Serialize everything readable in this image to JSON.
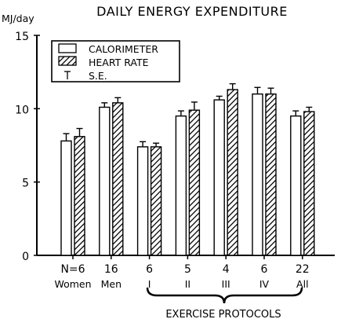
{
  "chart_data": {
    "type": "bar",
    "title": "DAILY ENERGY EXPENDITURE",
    "ylabel": "MJ/day",
    "ylim": [
      0,
      15
    ],
    "yticks": [
      0,
      5,
      10,
      15
    ],
    "grid": false,
    "legend_position": "top-left",
    "legend": [
      {
        "label": "CALORIMETER",
        "symbol": "open-bar"
      },
      {
        "label": "HEART RATE",
        "symbol": "hatched-bar"
      },
      {
        "label": "S.E.",
        "symbol": "error-bar"
      }
    ],
    "categories": [
      {
        "n": "N=6",
        "group": "Women"
      },
      {
        "n": "16",
        "group": "Men"
      },
      {
        "n": "6",
        "group": "I"
      },
      {
        "n": "5",
        "group": "II"
      },
      {
        "n": "4",
        "group": "III"
      },
      {
        "n": "6",
        "group": "IV"
      },
      {
        "n": "22",
        "group": "All"
      }
    ],
    "series": [
      {
        "name": "CALORIMETER",
        "fill": "open",
        "values": [
          7.8,
          10.1,
          7.4,
          9.5,
          10.6,
          11.0,
          9.5
        ],
        "se": [
          0.5,
          0.3,
          0.35,
          0.35,
          0.25,
          0.45,
          0.35
        ]
      },
      {
        "name": "HEART RATE",
        "fill": "hatched",
        "values": [
          8.1,
          10.4,
          7.4,
          9.9,
          11.3,
          11.0,
          9.8
        ],
        "se": [
          0.55,
          0.35,
          0.25,
          0.55,
          0.4,
          0.4,
          0.3
        ]
      }
    ],
    "bracket_label": "EXERCISE PROTOCOLS",
    "bracket_categories": [
      "I",
      "II",
      "III",
      "IV"
    ]
  }
}
